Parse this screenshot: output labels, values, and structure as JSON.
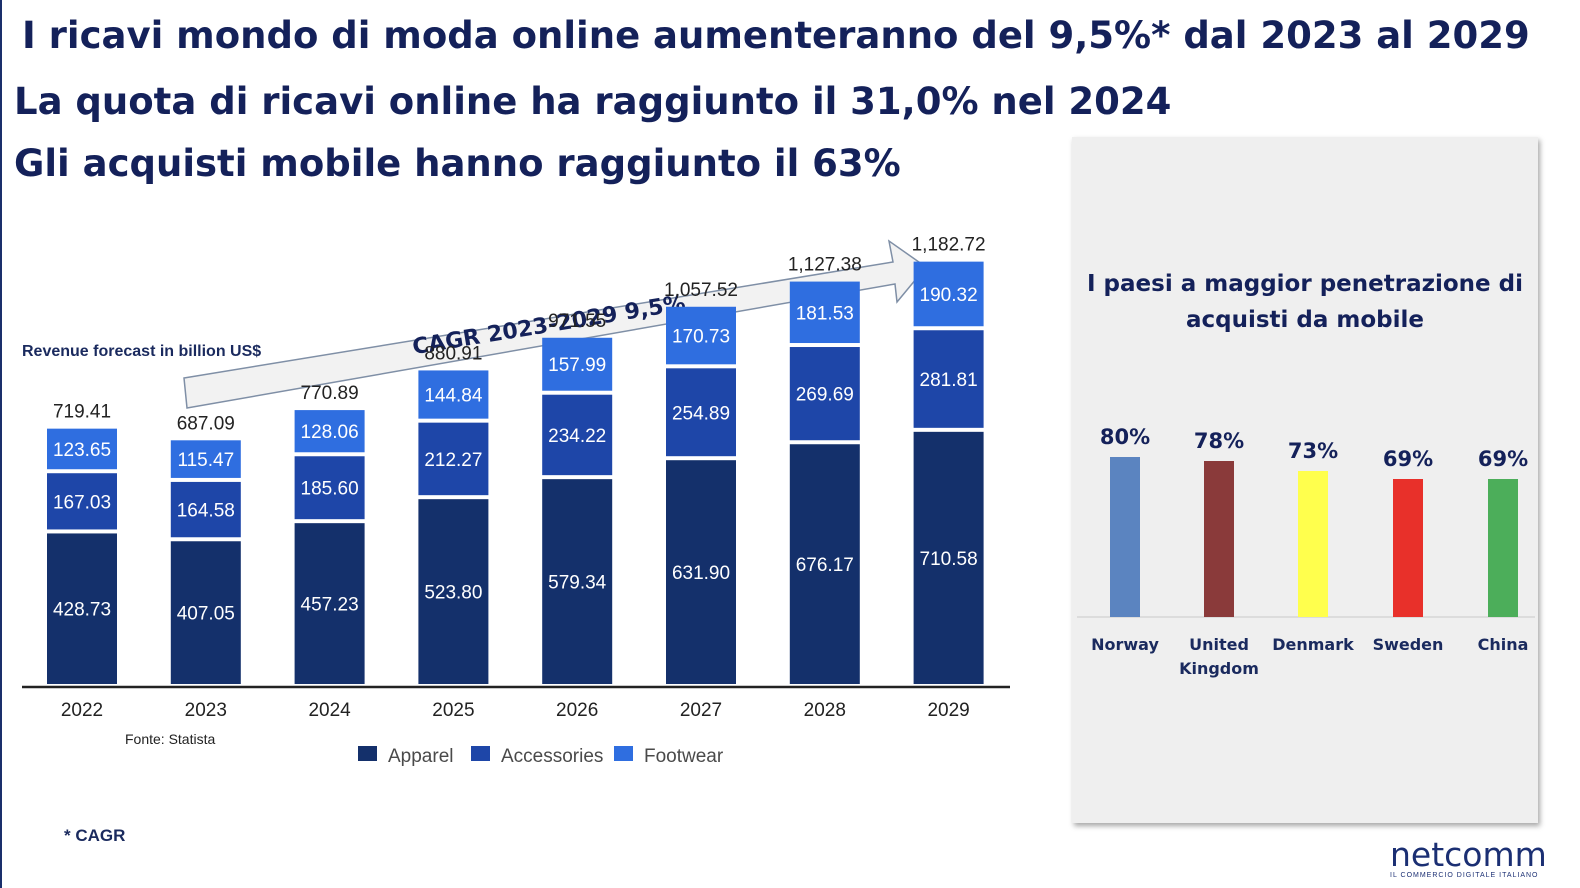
{
  "headlines": {
    "line1": "I ricavi mondo di moda online aumenteranno del 9,5%* dal 2023 al 2029",
    "line2": "La quota di ricavi online ha raggiunto il 31,0% nel 2024",
    "line3": "Gli acquisti mobile hanno raggiunto il  63%"
  },
  "revenue_label": "Revenue forecast in billion US$",
  "cagr_arrow_text": "CAGR 2023-2029  9,5%",
  "source": "Fonte: Statista",
  "footnote": "* CAGR",
  "panel": {
    "title": "I paesi a maggior penetrazione di acquisti da mobile"
  },
  "logo": {
    "name": "netcomm",
    "tagline": "IL COMMERCIO DIGITALE ITALIANO"
  },
  "colors": {
    "apparel": "#14306b",
    "accessories": "#1e46a8",
    "footwear": "#2f6ee0",
    "norway": "#5b84c0",
    "united_kingdom": "#8a3a3a",
    "denmark": "#ffff4d",
    "sweden": "#e8302a",
    "china": "#4cae5a"
  },
  "chart_data": [
    {
      "type": "bar",
      "stacked": true,
      "categories": [
        "2022",
        "2023",
        "2024",
        "2025",
        "2026",
        "2027",
        "2028",
        "2029"
      ],
      "series": [
        {
          "name": "Apparel",
          "values": [
            428.73,
            407.05,
            457.23,
            523.8,
            579.34,
            631.9,
            676.17,
            710.58
          ],
          "labels": [
            "428.73",
            "407.05",
            "457.23",
            "523.80",
            "579.34",
            "631.90",
            "676.17",
            "710.58"
          ]
        },
        {
          "name": "Accessories",
          "values": [
            167.03,
            164.58,
            185.6,
            212.27,
            234.22,
            254.89,
            269.69,
            281.81
          ],
          "labels": [
            "167.03",
            "164.58",
            "185.60",
            "212.27",
            "234.22",
            "254.89",
            "269.69",
            "281.81"
          ]
        },
        {
          "name": "Footwear",
          "values": [
            123.65,
            115.47,
            128.06,
            144.84,
            157.99,
            170.73,
            181.53,
            190.32
          ],
          "labels": [
            "123.65",
            "115.47",
            "128.06",
            "144.84",
            "157.99",
            "170.73",
            "181.53",
            "190.32"
          ]
        }
      ],
      "totals": [
        719.41,
        687.09,
        770.89,
        880.91,
        971.55,
        1057.52,
        1127.38,
        1182.72
      ],
      "total_labels": [
        "719.41",
        "687.09",
        "770.89",
        "880.91",
        "971.55",
        "1,057.52",
        "1,127.38",
        "1,182.72"
      ],
      "ylabel": "Revenue forecast in billion US$",
      "ylim": [
        0,
        1200
      ],
      "grid": false,
      "legend": "bottom"
    },
    {
      "type": "bar",
      "categories": [
        "Norway",
        "United Kingdom",
        "Denmark",
        "Sweden",
        "China"
      ],
      "values": [
        80,
        78,
        73,
        69,
        69
      ],
      "value_labels": [
        "80%",
        "78%",
        "73%",
        "69%",
        "69%"
      ],
      "title": "I paesi a maggior penetrazione di acquisti da mobile",
      "ylim": [
        0,
        100
      ],
      "grid": false
    }
  ]
}
